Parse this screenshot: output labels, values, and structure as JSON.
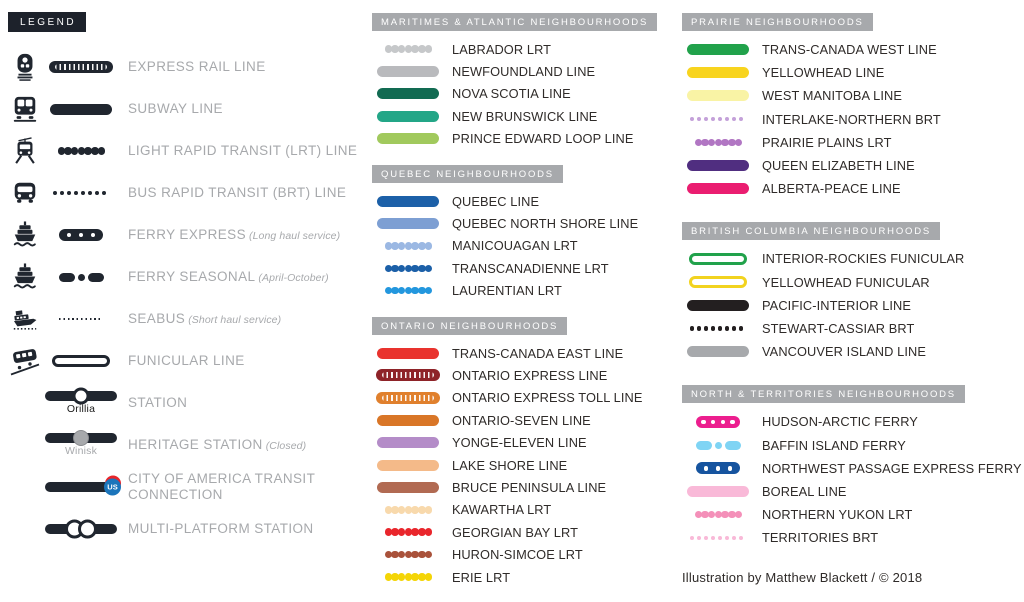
{
  "colors": {
    "ink": "#20262f",
    "legend_chip_bg": "#1d222b",
    "header_bg": "#a7a9ac",
    "label_gray": "#a7a9ac",
    "label_dark": "#2f2b29",
    "us_blue": "#1b75bb",
    "us_red": "#e8252a"
  },
  "legend": {
    "title": "LEGEND",
    "items": [
      {
        "icon": "express-train-icon",
        "style": "express",
        "color": "#20262f",
        "label": "EXPRESS RAIL LINE"
      },
      {
        "icon": "subway-icon",
        "style": "solid",
        "color": "#20262f",
        "label": "SUBWAY LINE"
      },
      {
        "icon": "tram-icon",
        "style": "lrt",
        "color": "#20262f",
        "label": "LIGHT RAPID TRANSIT (LRT) LINE"
      },
      {
        "icon": "bus-icon",
        "style": "brt",
        "color": "#20262f",
        "label": "BUS RAPID TRANSIT (BRT) LINE"
      },
      {
        "icon": "ferry-icon",
        "style": "ferry-express",
        "color": "#20262f",
        "dots": 3,
        "label": "FERRY EXPRESS",
        "note": "(Long haul service)"
      },
      {
        "icon": "ferry-icon",
        "style": "ferry-seasonal",
        "color": "#20262f",
        "label": "FERRY SEASONAL",
        "note": "(April-October)"
      },
      {
        "icon": "seabus-icon",
        "style": "seabus",
        "color": "#20262f",
        "label": "SEABUS",
        "note": "(Short haul service)"
      },
      {
        "icon": "funicular-icon",
        "style": "outline",
        "color": "#20262f",
        "label": "FUNICULAR LINE"
      },
      {
        "style": "station",
        "color": "#20262f",
        "label": "STATION",
        "station_name": "Orillia",
        "station_name_color": "#1a1a1a"
      },
      {
        "style": "heritage",
        "color": "#20262f",
        "label": "HERITAGE STATION",
        "note": "(Closed)",
        "station_name": "Winisk",
        "station_name_color": "#a7a9ac"
      },
      {
        "style": "us-connection",
        "color": "#20262f",
        "badge": "US",
        "label": "CITY OF AMERICA TRANSIT CONNECTION"
      },
      {
        "style": "multi",
        "color": "#20262f",
        "label": "MULTI-PLATFORM STATION"
      }
    ]
  },
  "sections": [
    {
      "column": "mid",
      "title": "MARITIMES & ATLANTIC NEIGHBOURHOODS",
      "items": [
        {
          "label": "LABRADOR LRT",
          "style": "lrt",
          "color": "#c6c8ca"
        },
        {
          "label": "NEWFOUNDLAND LINE",
          "style": "solid",
          "color": "#b9babd"
        },
        {
          "label": "NOVA SCOTIA LINE",
          "style": "solid",
          "color": "#126b52"
        },
        {
          "label": "NEW BRUNSWICK LINE",
          "style": "solid",
          "color": "#23a687"
        },
        {
          "label": "PRINCE EDWARD LOOP LINE",
          "style": "solid",
          "color": "#a1c95d"
        }
      ]
    },
    {
      "column": "mid",
      "title": "QUEBEC NEIGHBOURHOODS",
      "items": [
        {
          "label": "QUEBEC LINE",
          "style": "solid",
          "color": "#1c60a8"
        },
        {
          "label": "QUEBEC NORTH SHORE LINE",
          "style": "solid",
          "color": "#7d9fd3"
        },
        {
          "label": "MANICOUAGAN LRT",
          "style": "lrt",
          "color": "#9bb8e3"
        },
        {
          "label": "TRANSCANADIENNE LRT",
          "style": "lrt",
          "color": "#1c60a8"
        },
        {
          "label": "LAURENTIAN LRT",
          "style": "lrt",
          "color": "#2397de"
        }
      ]
    },
    {
      "column": "mid",
      "title": "ONTARIO NEIGHBOURHOODS",
      "items": [
        {
          "label": "TRANS-CANADA EAST LINE",
          "style": "solid",
          "color": "#e9332e"
        },
        {
          "label": "ONTARIO EXPRESS LINE",
          "style": "express",
          "color": "#8e2328"
        },
        {
          "label": "ONTARIO EXPRESS TOLL LINE",
          "style": "express",
          "color": "#e0802d"
        },
        {
          "label": "ONTARIO-SEVEN LINE",
          "style": "solid",
          "color": "#d97627"
        },
        {
          "label": "YONGE-ELEVEN LINE",
          "style": "solid",
          "color": "#b48cc8"
        },
        {
          "label": "LAKE SHORE LINE",
          "style": "solid",
          "color": "#f4ba89"
        },
        {
          "label": "BRUCE PENINSULA LINE",
          "style": "solid",
          "color": "#b16a52"
        },
        {
          "label": "KAWARTHA LRT",
          "style": "lrt",
          "color": "#f8d9ac"
        },
        {
          "label": "GEORGIAN BAY LRT",
          "style": "lrt",
          "color": "#e9262c"
        },
        {
          "label": "HURON-SIMCOE LRT",
          "style": "lrt",
          "color": "#a9523b"
        },
        {
          "label": "ERIE LRT",
          "style": "lrt",
          "color": "#f4d506"
        }
      ]
    },
    {
      "column": "right",
      "title": "PRAIRIE NEIGHBOURHOODS",
      "items": [
        {
          "label": "TRANS-CANADA WEST LINE",
          "style": "solid",
          "color": "#21a24b"
        },
        {
          "label": "YELLOWHEAD LINE",
          "style": "solid",
          "color": "#f8d41e"
        },
        {
          "label": "WEST MANITOBA LINE",
          "style": "solid",
          "color": "#f9f3a5"
        },
        {
          "label": "INTERLAKE-NORTHERN BRT",
          "style": "brt",
          "color": "#c4a1d9"
        },
        {
          "label": "PRAIRIE PLAINS LRT",
          "style": "lrt",
          "color": "#b176c3"
        },
        {
          "label": "QUEEN ELIZABETH LINE",
          "style": "solid",
          "color": "#502e80"
        },
        {
          "label": "ALBERTA-PEACE LINE",
          "style": "solid",
          "color": "#ea1d70"
        }
      ]
    },
    {
      "column": "right",
      "title": "BRITISH COLUMBIA NEIGHBOURHOODS",
      "items": [
        {
          "label": "INTERIOR-ROCKIES FUNICULAR",
          "style": "outline",
          "color": "#21a24b"
        },
        {
          "label": "YELLOWHEAD FUNICULAR",
          "style": "outline",
          "color": "#f2d31f"
        },
        {
          "label": "PACIFIC-INTERIOR LINE",
          "style": "solid",
          "color": "#231f20"
        },
        {
          "label": "STEWART-CASSIAR BRT",
          "style": "brt",
          "color": "#231f20"
        },
        {
          "label": "VANCOUVER ISLAND LINE",
          "style": "solid",
          "color": "#a7a9ac"
        }
      ]
    },
    {
      "column": "right",
      "title": "NORTH & TERRITORIES NEIGHBOURHOODS",
      "items": [
        {
          "label": "HUDSON-ARCTIC FERRY",
          "style": "ferry-express",
          "color": "#ec1e8e",
          "dots": 4
        },
        {
          "label": "BAFFIN ISLAND FERRY",
          "style": "ferry-seasonal",
          "color": "#7fd4f4"
        },
        {
          "label": "NORTHWEST PASSAGE EXPRESS FERRY",
          "style": "ferry-express",
          "color": "#16549f",
          "dots": 3
        },
        {
          "label": "BOREAL LINE",
          "style": "solid",
          "color": "#f9b9d8"
        },
        {
          "label": "NORTHERN YUKON LRT",
          "style": "lrt",
          "color": "#f490b9"
        },
        {
          "label": "TERRITORIES BRT",
          "style": "brt",
          "color": "#f9b9d8"
        }
      ]
    }
  ],
  "footer": "Illustration by Matthew Blackett / © 2018"
}
